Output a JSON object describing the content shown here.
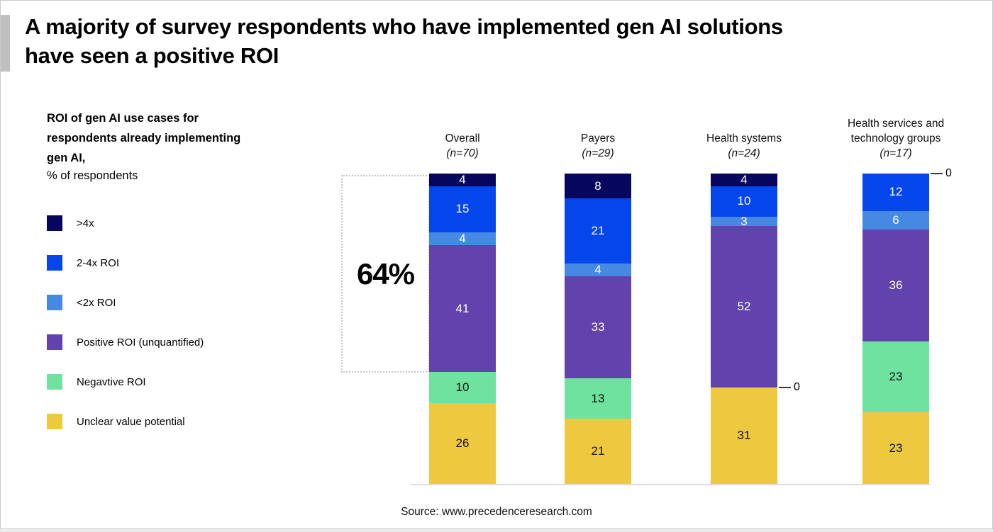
{
  "slide": {
    "title_lines": [
      "A majority of survey respondents who have implemented gen AI solutions",
      "have seen a positive ROI"
    ],
    "source": "Source: www.precedenceresearch.com"
  },
  "chart_data": {
    "type": "bar",
    "stacked": true,
    "title_lines": [
      "ROI of gen AI use cases for",
      "respondents already implementing",
      "gen AI,"
    ],
    "subtitle": "% of respondents",
    "ylim": [
      0,
      100
    ],
    "grid": false,
    "legend_position": "left",
    "categories": [
      {
        "label": "Overall",
        "n": "(n=70)"
      },
      {
        "label": "Payers",
        "n": "(n=29)"
      },
      {
        "label": "Health systems",
        "n": "(n=24)"
      },
      {
        "label": "Health services and technology groups",
        "n": "(n=17)"
      }
    ],
    "series": [
      {
        "name": ">4x",
        "color": "#06065f",
        "text_color": "#ffffff",
        "values": [
          4,
          8,
          4,
          0
        ]
      },
      {
        "name": "2-4x ROI",
        "color": "#0546ec",
        "text_color": "#ffffff",
        "values": [
          15,
          21,
          10,
          12
        ]
      },
      {
        "name": "<2x ROI",
        "color": "#4689e3",
        "text_color": "#ffffff",
        "values": [
          4,
          4,
          3,
          6
        ]
      },
      {
        "name": "Positive ROI (unquantified)",
        "color": "#6243ae",
        "text_color": "#ffffff",
        "values": [
          41,
          33,
          52,
          36
        ]
      },
      {
        "name": "Negavtive ROI",
        "color": "#6ee29e",
        "text_color": "#111111",
        "values": [
          10,
          13,
          0,
          23
        ]
      },
      {
        "name": "Unclear value potential",
        "color": "#eec83f",
        "text_color": "#111111",
        "values": [
          26,
          21,
          31,
          23
        ]
      }
    ],
    "annotation": {
      "label": "64%"
    },
    "zero_callouts": [
      {
        "category_index": 2,
        "series_index": 4,
        "label": "0"
      },
      {
        "category_index": 3,
        "series_index": 0,
        "label": "0"
      }
    ]
  }
}
